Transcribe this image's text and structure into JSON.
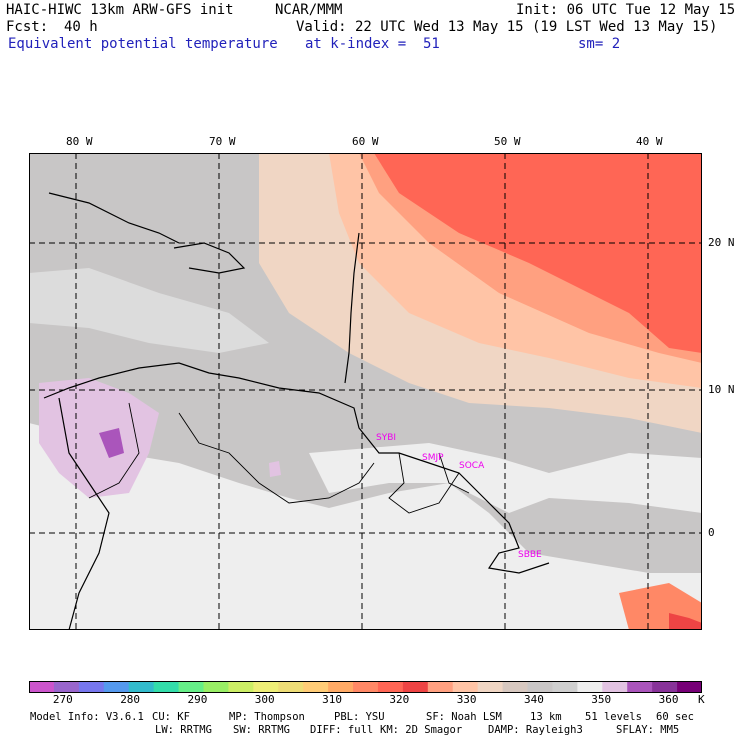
{
  "header": {
    "model": "HAIC-HIWC 13km ARW-GFS init",
    "org": "NCAR/MMM",
    "init": "Init: 06 UTC Tue 12 May 15",
    "fcst_label": "Fcst:",
    "fcst_value": "40 h",
    "valid": "Valid: 22 UTC Wed 13 May 15 (19 LST Wed 13 May 15)",
    "field": "Equivalent potential temperature",
    "level": "at k-index =  51",
    "smooth": "sm= 2"
  },
  "map": {
    "lon_labels": [
      "80 W",
      "70 W",
      "60 W",
      "50 W",
      "40 W"
    ],
    "lat_labels": [
      "20 N",
      "10 N",
      "0"
    ],
    "sites": [
      "SYBI",
      "SMJP",
      "SOCA",
      "SBBE"
    ]
  },
  "colorbar": {
    "colors": [
      "#cc55cc",
      "#9966cc",
      "#7777ee",
      "#5599ee",
      "#33bbcc",
      "#33ddaa",
      "#66ee88",
      "#99ee66",
      "#ccee66",
      "#eeee77",
      "#eedd77",
      "#ffcc77",
      "#ffaa66",
      "#ff8866",
      "#ff6655",
      "#ee4444",
      "#ffa080",
      "#ffc4a6",
      "#f0d6c4",
      "#d7c8c0",
      "#c9c6c6",
      "#cfcfcf",
      "#eeeeee",
      "#e2c3e2",
      "#aa55bb",
      "#883399",
      "#770077"
    ],
    "tick_labels": [
      "270",
      "280",
      "290",
      "300",
      "310",
      "320",
      "330",
      "340",
      "350",
      "360"
    ],
    "unit": "K"
  },
  "footer": {
    "line1": [
      "Model Info: V3.6.1",
      "CU: KF",
      "MP: Thompson",
      "PBL: YSU",
      "SF: Noah LSM",
      "13 km",
      "51 levels",
      "60 sec"
    ],
    "line2": [
      "LW: RRTMG",
      "SW: RRTMG",
      "DIFF: full",
      "KM: 2D Smagor",
      "DAMP: Rayleigh3",
      "SFLAY: MM5"
    ]
  }
}
